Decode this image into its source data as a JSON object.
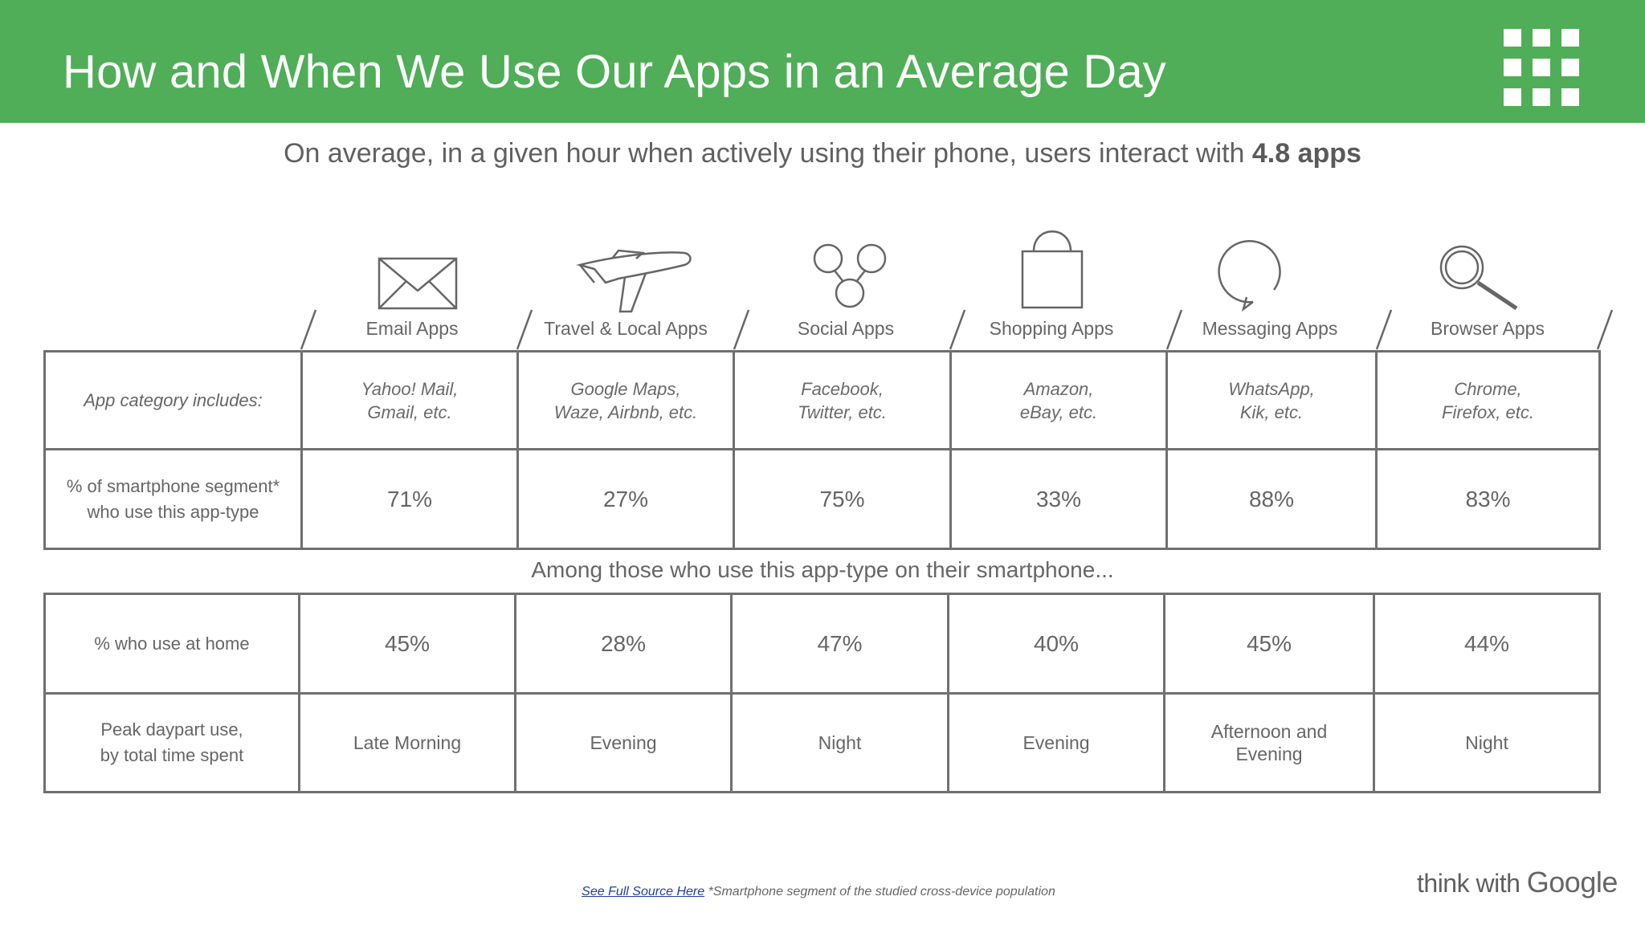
{
  "header": {
    "title": "How and When We Use Our Apps in an Average Day",
    "color": "#4fae57"
  },
  "subtitle": {
    "text": "On average, in a given hour when actively using their phone, users interact with",
    "highlight": "4.8 apps"
  },
  "columns": [
    {
      "label": "Email Apps",
      "icon": "envelope-icon",
      "includes": [
        "Yahoo! Mail,",
        "Gmail, etc."
      ],
      "pct_segment": "71%",
      "pct_home": "45%",
      "peak": [
        "Late Morning"
      ]
    },
    {
      "label": "Travel & Local Apps",
      "icon": "airplane-icon",
      "includes": [
        "Google Maps,",
        "Waze, Airbnb, etc."
      ],
      "pct_segment": "27%",
      "pct_home": "28%",
      "peak": [
        "Evening"
      ]
    },
    {
      "label": "Social Apps",
      "icon": "social-network-icon",
      "includes": [
        "Facebook,",
        "Twitter, etc."
      ],
      "pct_segment": "75%",
      "pct_home": "47%",
      "peak": [
        "Night"
      ]
    },
    {
      "label": "Shopping  Apps",
      "icon": "shopping-bag-icon",
      "includes": [
        "Amazon,",
        "eBay, etc."
      ],
      "pct_segment": "33%",
      "pct_home": "40%",
      "peak": [
        "Evening"
      ]
    },
    {
      "label": "Messaging Apps",
      "icon": "speech-bubble-icon",
      "includes": [
        "WhatsApp,",
        "Kik, etc."
      ],
      "pct_segment": "88%",
      "pct_home": "45%",
      "peak": [
        "Afternoon and",
        "Evening"
      ]
    },
    {
      "label": "Browser Apps",
      "icon": "magnifier-icon",
      "includes": [
        "Chrome,",
        "Firefox, etc."
      ],
      "pct_segment": "83%",
      "pct_home": "44%",
      "peak": [
        "Night"
      ]
    }
  ],
  "rows": {
    "includes_label": "App category includes:",
    "segment_label": [
      "% of smartphone segment*",
      "who use this app-type"
    ],
    "among": "Among those who use this app-type on their smartphone...",
    "home_label": "% who use at home",
    "peak_label": [
      "Peak daypart use,",
      "by total time spent"
    ]
  },
  "footer": {
    "link": "See Full Source Here",
    "note": "*Smartphone segment of the studied cross-device population"
  },
  "brand": {
    "prefix": "think with",
    "name": "Google"
  }
}
